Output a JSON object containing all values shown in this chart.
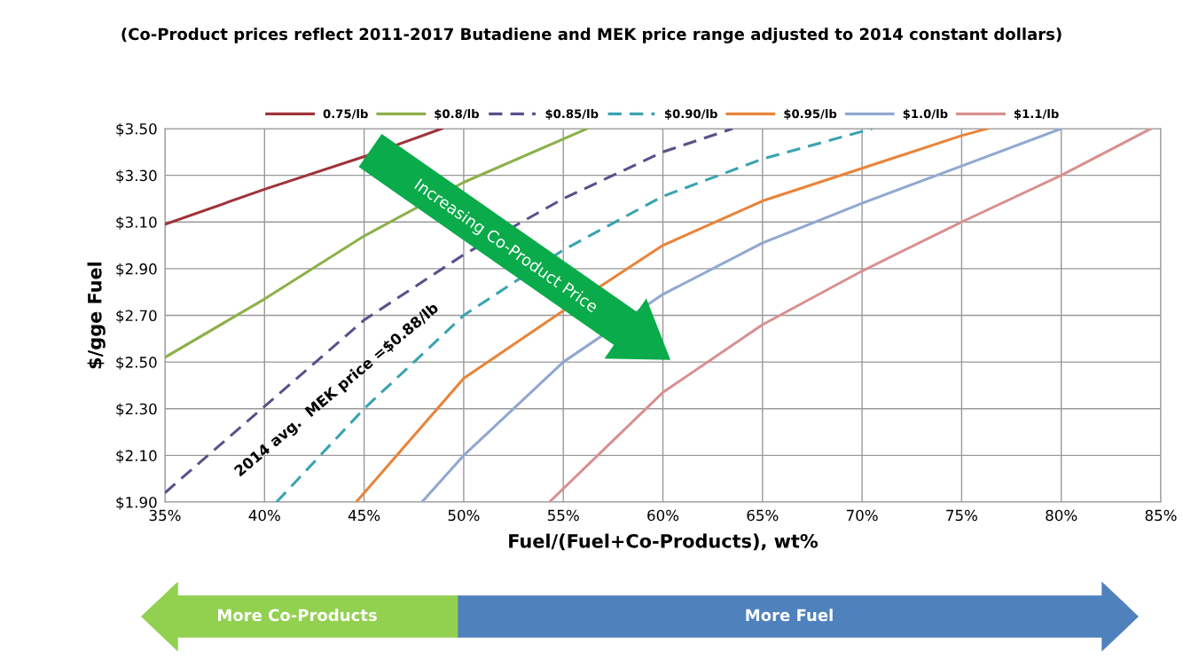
{
  "chart_data": {
    "type": "line",
    "title": "(Co-Product prices reflect 2011-2017 Butadiene and MEK price range adjusted to 2014 constant dollars)",
    "xlabel": "Fuel/(Fuel+Co-Products), wt%",
    "ylabel": "$/gge Fuel",
    "xlim": [
      35,
      85
    ],
    "ylim": [
      1.9,
      3.5
    ],
    "xticks": [
      {
        "value": 35,
        "label": "35%"
      },
      {
        "value": 40,
        "label": "40%"
      },
      {
        "value": 45,
        "label": "45%"
      },
      {
        "value": 50,
        "label": "50%"
      },
      {
        "value": 55,
        "label": "55%"
      },
      {
        "value": 60,
        "label": "60%"
      },
      {
        "value": 65,
        "label": "65%"
      },
      {
        "value": 70,
        "label": "70%"
      },
      {
        "value": 75,
        "label": "75%"
      },
      {
        "value": 80,
        "label": "80%"
      },
      {
        "value": 85,
        "label": "85%"
      }
    ],
    "yticks": [
      {
        "value": 1.9,
        "label": "$1.90"
      },
      {
        "value": 2.1,
        "label": "$2.10"
      },
      {
        "value": 2.3,
        "label": "$2.30"
      },
      {
        "value": 2.5,
        "label": "$2.50"
      },
      {
        "value": 2.7,
        "label": "$2.70"
      },
      {
        "value": 2.9,
        "label": "$2.90"
      },
      {
        "value": 3.1,
        "label": "$3.10"
      },
      {
        "value": 3.3,
        "label": "$3.30"
      },
      {
        "value": 3.5,
        "label": "$3.50"
      }
    ],
    "grid": true,
    "legend": "top",
    "marker": "none",
    "series": [
      {
        "name": "0.75/lb",
        "color": "#a0333a",
        "line_style": "solid",
        "x": [
          35,
          40,
          45,
          48.9
        ],
        "values": [
          3.09,
          3.24,
          3.38,
          3.5
        ]
      },
      {
        "name": "$0.8/lb",
        "color": "#8db04a",
        "line_style": "solid",
        "x": [
          35,
          40,
          45,
          50,
          56.2
        ],
        "values": [
          2.52,
          2.77,
          3.04,
          3.27,
          3.5
        ]
      },
      {
        "name": "$0.85/lb",
        "color": "#5b4f8a",
        "line_style": "dashed",
        "x": [
          35,
          40,
          45,
          50,
          55,
          60,
          63.5
        ],
        "values": [
          1.94,
          2.31,
          2.68,
          2.96,
          3.2,
          3.4,
          3.5
        ]
      },
      {
        "name": "$0.90/lb",
        "color": "#3aa3b0",
        "line_style": "dashed",
        "x": [
          40.6,
          45,
          50,
          55,
          60,
          65,
          70.5
        ],
        "values": [
          1.9,
          2.3,
          2.7,
          2.98,
          3.21,
          3.37,
          3.5
        ]
      },
      {
        "name": "$0.95/lb",
        "color": "#e8843a",
        "line_style": "solid",
        "x": [
          44.6,
          50,
          55,
          60,
          65,
          70,
          75,
          76.3
        ],
        "values": [
          1.9,
          2.43,
          2.72,
          3.0,
          3.19,
          3.33,
          3.47,
          3.5
        ]
      },
      {
        "name": "$1.0/lb",
        "color": "#91a8d0",
        "line_style": "solid",
        "x": [
          47.9,
          50,
          55,
          60,
          65,
          70,
          75,
          80
        ],
        "values": [
          1.9,
          2.1,
          2.5,
          2.79,
          3.01,
          3.18,
          3.34,
          3.5
        ]
      },
      {
        "name": "$1.1/lb",
        "color": "#d89090",
        "line_style": "solid",
        "x": [
          54.3,
          60,
          65,
          70,
          75,
          80,
          84.5
        ],
        "values": [
          1.9,
          2.37,
          2.66,
          2.89,
          3.1,
          3.3,
          3.5
        ]
      }
    ],
    "annotations": [
      "2014 avg.  MEK price =$0.88/lb",
      "Increasing Co-Product Price",
      "More Co-Products",
      "More Fuel"
    ]
  }
}
